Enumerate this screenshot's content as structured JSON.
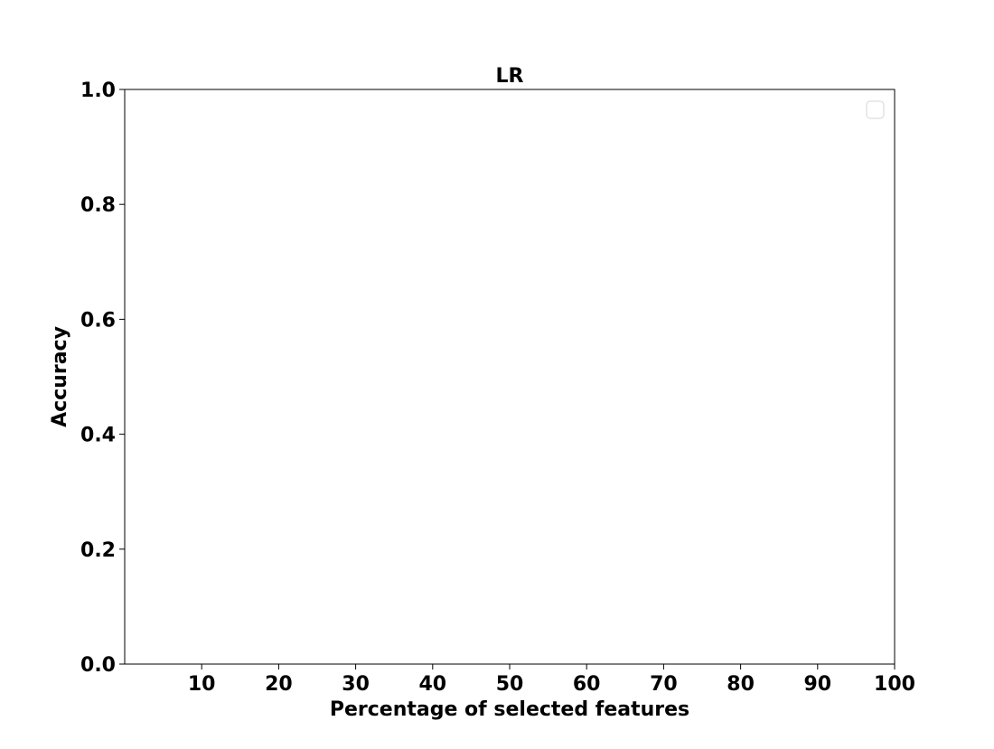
{
  "chart_data": {
    "type": "line",
    "title": "LR",
    "xlabel": "Percentage of selected features",
    "ylabel": "Accuracy",
    "xlim": [
      0,
      100
    ],
    "ylim": [
      0.0,
      1.0
    ],
    "xticks": [
      10,
      20,
      30,
      40,
      50,
      60,
      70,
      80,
      90,
      100
    ],
    "yticks": [
      0.0,
      0.2,
      0.4,
      0.6,
      0.8,
      1.0
    ],
    "grid": false,
    "legend_position": "top-right",
    "series": []
  }
}
